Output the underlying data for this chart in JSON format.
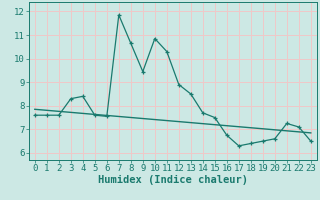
{
  "xlabel": "Humidex (Indice chaleur)",
  "xlim": [
    -0.5,
    23.5
  ],
  "ylim": [
    5.7,
    12.4
  ],
  "xticks": [
    0,
    1,
    2,
    3,
    4,
    5,
    6,
    7,
    8,
    9,
    10,
    11,
    12,
    13,
    14,
    15,
    16,
    17,
    18,
    19,
    20,
    21,
    22,
    23
  ],
  "yticks": [
    6,
    7,
    8,
    9,
    10,
    11,
    12
  ],
  "data_x": [
    0,
    1,
    2,
    3,
    4,
    5,
    6,
    7,
    8,
    9,
    10,
    11,
    12,
    13,
    14,
    15,
    16,
    17,
    18,
    19,
    20,
    21,
    22,
    23
  ],
  "data_y": [
    7.6,
    7.6,
    7.6,
    8.3,
    8.4,
    7.6,
    7.55,
    11.85,
    10.65,
    9.45,
    10.85,
    10.3,
    8.9,
    8.5,
    7.7,
    7.5,
    6.75,
    6.3,
    6.4,
    6.5,
    6.6,
    7.25,
    7.1,
    6.5
  ],
  "trend_x": [
    0,
    23
  ],
  "trend_y": [
    7.85,
    6.85
  ],
  "line_color": "#1a7a6e",
  "bg_color": "#cce8e4",
  "grid_color": "#f0c8c8",
  "tick_fontsize": 6.5,
  "label_fontsize": 7.5
}
